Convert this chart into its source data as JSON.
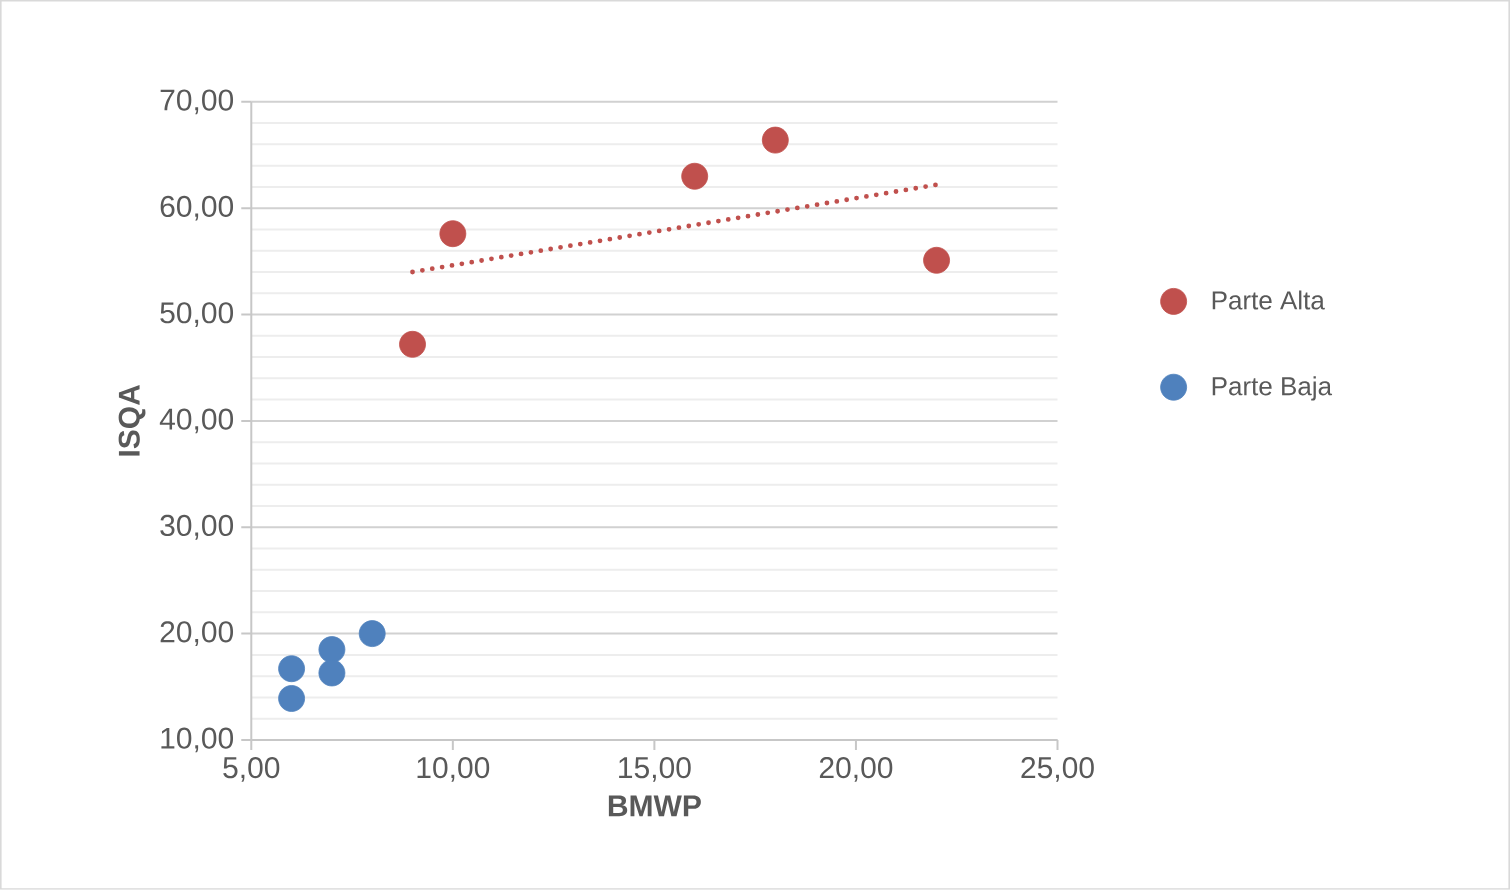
{
  "chart_data": {
    "type": "scatter",
    "xlabel": "BMWP",
    "ylabel": "ISQA",
    "xlim": [
      5,
      25
    ],
    "ylim": [
      10,
      70
    ],
    "xticks": [
      {
        "value": 5,
        "label": "5,00"
      },
      {
        "value": 10,
        "label": "10,00"
      },
      {
        "value": 15,
        "label": "15,00"
      },
      {
        "value": 20,
        "label": "20,00"
      },
      {
        "value": 25,
        "label": "25,00"
      }
    ],
    "yticks": [
      {
        "value": 10,
        "label": "10,00"
      },
      {
        "value": 20,
        "label": "20,00"
      },
      {
        "value": 30,
        "label": "30,00"
      },
      {
        "value": 40,
        "label": "40,00"
      },
      {
        "value": 50,
        "label": "50,00"
      },
      {
        "value": 60,
        "label": "60,00"
      },
      {
        "value": 70,
        "label": "70,00"
      }
    ],
    "grid": "y",
    "legend": "right",
    "series": [
      {
        "name": "Parte Alta",
        "color": "#c0504d",
        "x": [
          9,
          10,
          16,
          18,
          22
        ],
        "values": [
          47.2,
          57.6,
          63.0,
          66.4,
          55.1
        ],
        "marker": "circle"
      },
      {
        "name": "Parte Baja",
        "color": "#4f81bd",
        "x": [
          6,
          6,
          7,
          7,
          8
        ],
        "values": [
          16.7,
          13.9,
          18.5,
          16.3,
          20.0
        ],
        "marker": "circle"
      },
      {
        "type": "line",
        "line_style": "dotted",
        "color": "#c0504d",
        "x": [
          9,
          22
        ],
        "values": [
          54.0,
          62.2
        ],
        "marker": "none"
      }
    ]
  }
}
